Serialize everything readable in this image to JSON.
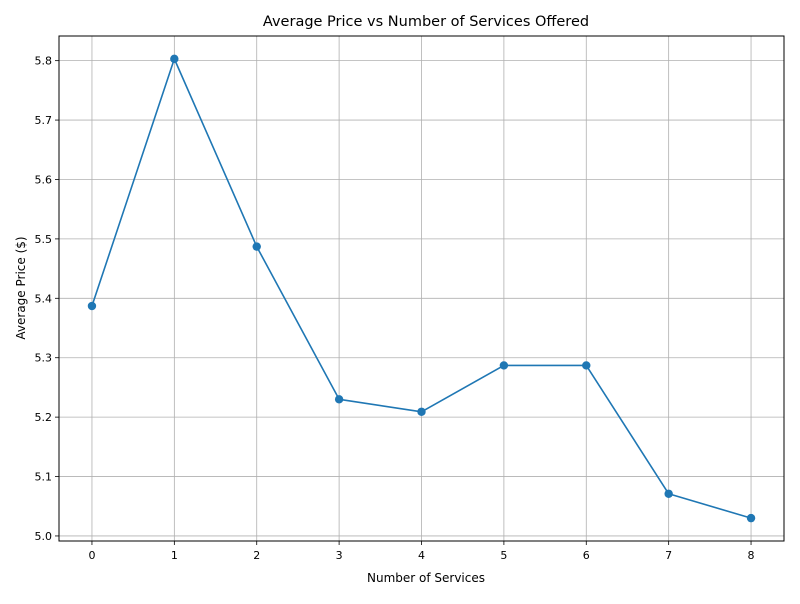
{
  "chart_data": {
    "type": "line",
    "title": "Average Price vs Number of Services Offered",
    "xlabel": "Number of Services",
    "ylabel": "Average Price ($)",
    "x": [
      0,
      1,
      2,
      3,
      4,
      5,
      6,
      7,
      8
    ],
    "series": [
      {
        "values": [
          5.387,
          5.803,
          5.487,
          5.23,
          5.209,
          5.287,
          5.287,
          5.071,
          5.03
        ],
        "color": "#1f77b4",
        "marker": "circle"
      }
    ],
    "xlim": [
      -0.4,
      8.4
    ],
    "ylim": [
      4.9915,
      5.8415
    ],
    "xticks": [
      "0",
      "1",
      "2",
      "3",
      "4",
      "5",
      "6",
      "7",
      "8"
    ],
    "yticks": [
      "5.0",
      "5.1",
      "5.2",
      "5.3",
      "5.4",
      "5.5",
      "5.6",
      "5.7",
      "5.8"
    ],
    "grid": true,
    "legend": null
  }
}
